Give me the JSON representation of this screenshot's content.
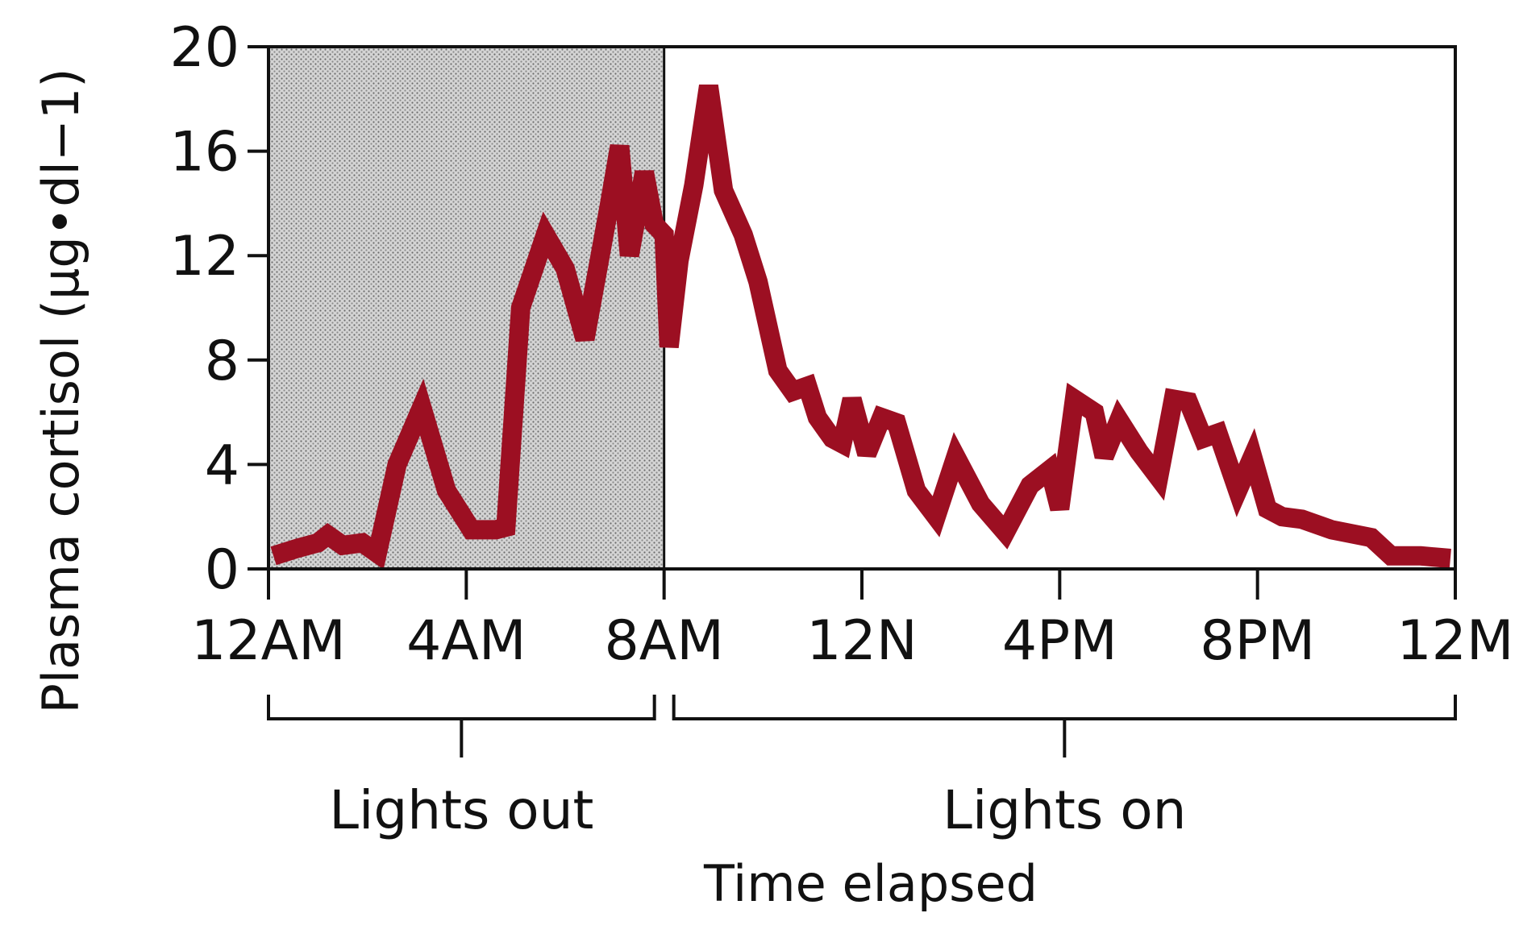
{
  "chart_data": {
    "type": "line",
    "title": "",
    "xlabel": "Time elapsed",
    "ylabel": "Plasma cortisol (μg•dl−1)",
    "ylim": [
      0,
      20
    ],
    "xlim": [
      0,
      24
    ],
    "yticks": [
      0,
      4,
      8,
      12,
      16,
      20
    ],
    "xticks": [
      {
        "hour": 0,
        "label": "12AM"
      },
      {
        "hour": 4,
        "label": "4AM"
      },
      {
        "hour": 8,
        "label": "8AM"
      },
      {
        "hour": 12,
        "label": "12N"
      },
      {
        "hour": 16,
        "label": "4PM"
      },
      {
        "hour": 20,
        "label": "8PM"
      },
      {
        "hour": 24,
        "label": "12M"
      }
    ],
    "grid": false,
    "legend": "none",
    "line_color": "#9c0f22",
    "shading_color": "#c9c9c9",
    "periods": [
      {
        "label": "Lights out",
        "start": 0,
        "end": 8,
        "shaded": true
      },
      {
        "label": "Lights on",
        "start": 8,
        "end": 24,
        "shaded": false
      }
    ],
    "series": [
      {
        "x": [
          0.1,
          0.6,
          1.0,
          1.2,
          1.5,
          1.9,
          2.2,
          2.6,
          3.1,
          3.6,
          4.1,
          4.6,
          4.8,
          5.1,
          5.6,
          6.0,
          6.4,
          6.9,
          7.1,
          7.3,
          7.6,
          7.8,
          8.0,
          8.1,
          8.3,
          8.6,
          8.9,
          9.2,
          9.6,
          9.9,
          10.3,
          10.6,
          10.9,
          11.1,
          11.4,
          11.6,
          11.8,
          12.1,
          12.4,
          12.7,
          13.1,
          13.5,
          13.9,
          14.4,
          14.9,
          15.4,
          15.8,
          16.0,
          16.3,
          16.7,
          16.9,
          17.2,
          17.6,
          18.0,
          18.3,
          18.6,
          18.9,
          19.2,
          19.6,
          19.9,
          20.2,
          20.5,
          20.9,
          21.5,
          22.3,
          22.7,
          22.9,
          23.3,
          23.9
        ],
        "y": [
          0.5,
          0.8,
          1.0,
          1.3,
          0.9,
          1.0,
          0.6,
          4.0,
          6.2,
          3.0,
          1.5,
          1.5,
          1.6,
          10.0,
          12.8,
          11.5,
          8.8,
          14.0,
          16.2,
          12.0,
          15.2,
          13.2,
          12.8,
          8.5,
          11.8,
          14.7,
          18.5,
          14.5,
          12.8,
          11.0,
          7.6,
          6.8,
          7.0,
          5.8,
          5.0,
          4.8,
          6.5,
          4.4,
          5.8,
          5.6,
          3.0,
          2.0,
          4.3,
          2.5,
          1.4,
          3.2,
          3.8,
          2.3,
          6.5,
          6.0,
          4.3,
          5.7,
          4.5,
          3.5,
          6.5,
          6.4,
          5.0,
          5.2,
          3.0,
          4.3,
          2.3,
          2.0,
          1.9,
          1.5,
          1.2,
          0.5,
          0.5,
          0.5,
          0.4
        ]
      }
    ]
  }
}
